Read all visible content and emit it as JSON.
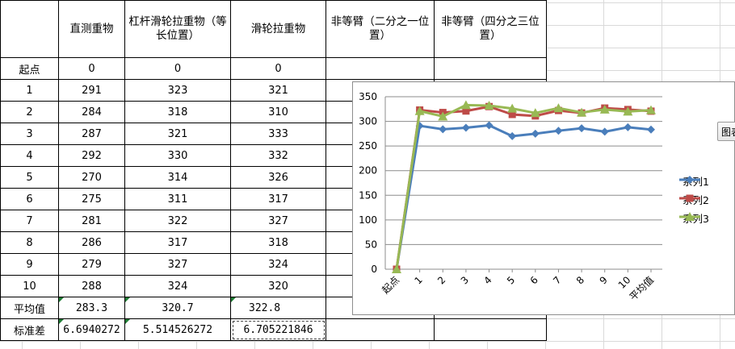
{
  "sheet": {
    "headers": [
      "",
      "直测重物",
      "杠杆滑轮拉重物（等长位置）",
      "滑轮拉重物",
      "非等臂（二分之一位置）",
      "非等臂（四分之三位置）"
    ],
    "rows": [
      {
        "label": "起点",
        "c1": "0",
        "c2": "0",
        "c3": "0"
      },
      {
        "label": "1",
        "c1": "291",
        "c2": "323",
        "c3": "321"
      },
      {
        "label": "2",
        "c1": "284",
        "c2": "318",
        "c3": "310"
      },
      {
        "label": "3",
        "c1": "287",
        "c2": "321",
        "c3": "333"
      },
      {
        "label": "4",
        "c1": "292",
        "c2": "330",
        "c3": "332"
      },
      {
        "label": "5",
        "c1": "270",
        "c2": "314",
        "c3": "326"
      },
      {
        "label": "6",
        "c1": "275",
        "c2": "311",
        "c3": "317"
      },
      {
        "label": "7",
        "c1": "281",
        "c2": "322",
        "c3": "327"
      },
      {
        "label": "8",
        "c1": "286",
        "c2": "317",
        "c3": "318"
      },
      {
        "label": "9",
        "c1": "279",
        "c2": "327",
        "c3": "324"
      },
      {
        "label": "10",
        "c1": "288",
        "c2": "324",
        "c3": "320"
      },
      {
        "label": "平均值",
        "c1": "283.3",
        "c2": "320.7",
        "c3": "322.8"
      },
      {
        "label": "标准差",
        "c1": "6.6940272",
        "c2": "5.514526272",
        "c3": "6.705221846"
      }
    ]
  },
  "side_button": {
    "label": "图表"
  },
  "chart_data": {
    "type": "line",
    "categories": [
      "起点",
      "1",
      "2",
      "3",
      "4",
      "5",
      "6",
      "7",
      "8",
      "9",
      "10",
      "平均值"
    ],
    "series": [
      {
        "name": "系列1",
        "color": "#4a7ebb",
        "marker": "diamond",
        "values": [
          0,
          291,
          284,
          287,
          292,
          270,
          275,
          281,
          286,
          279,
          288,
          283.3
        ]
      },
      {
        "name": "系列2",
        "color": "#be4b48",
        "marker": "square",
        "values": [
          0,
          323,
          318,
          321,
          330,
          314,
          311,
          322,
          317,
          327,
          324,
          320.7
        ]
      },
      {
        "name": "系列3",
        "color": "#98b954",
        "marker": "triangle",
        "values": [
          0,
          321,
          310,
          333,
          332,
          326,
          317,
          327,
          318,
          324,
          320,
          322.8
        ]
      }
    ],
    "ylim": [
      0,
      350
    ],
    "yticks": [
      "0",
      "50",
      "100",
      "150",
      "200",
      "250",
      "300",
      "350"
    ],
    "grid": true,
    "legend": "right"
  }
}
